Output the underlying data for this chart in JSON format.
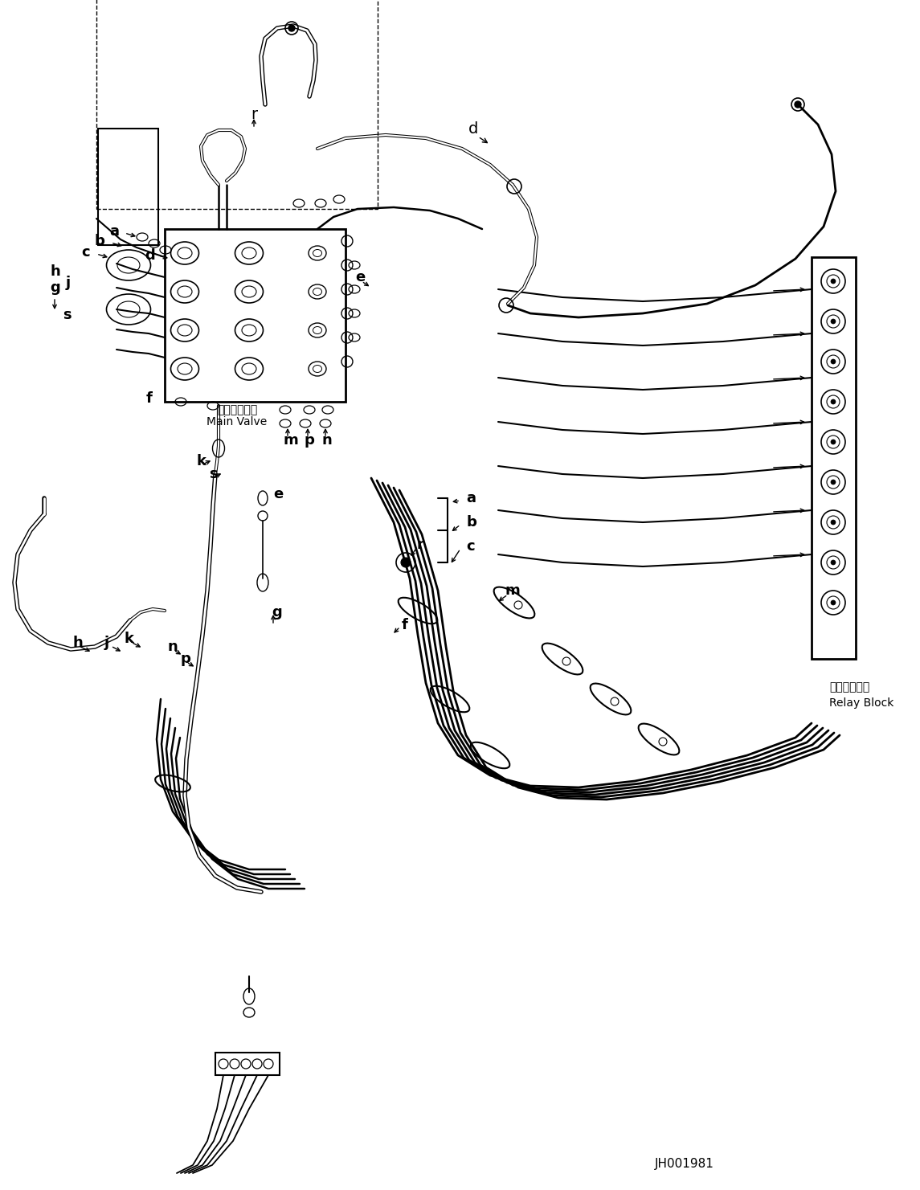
{
  "bg_color": "#ffffff",
  "line_color": "#000000",
  "fig_width": 11.45,
  "fig_height": 14.81,
  "dpi": 100,
  "bottom_right_label1": "中継ブロック",
  "bottom_right_label2": "Relay Block",
  "bottom_right_code": "JH001981",
  "main_valve_label1": "メインバルブ",
  "main_valve_label2": "Main Valve"
}
